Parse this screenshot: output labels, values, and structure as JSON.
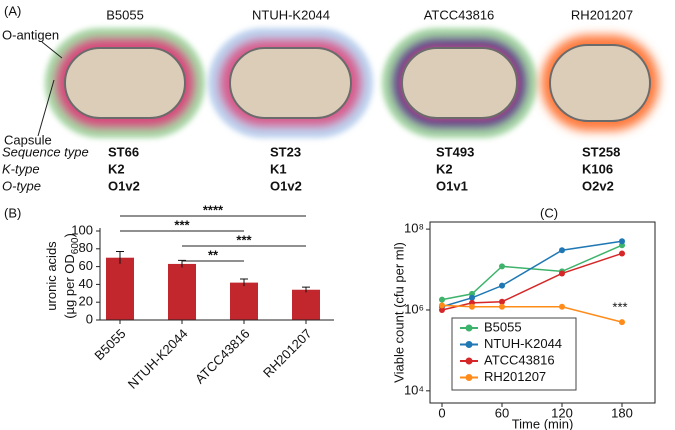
{
  "panel_a": {
    "label": "(A)",
    "strains": [
      "B5055",
      "NTUH-K2044",
      "ATCC43816",
      "RH201207"
    ],
    "parts": {
      "o_antigen": "O-antigen",
      "capsule": "Capsule"
    },
    "rows": [
      {
        "name": "Sequence type",
        "values": [
          "ST66",
          "ST23",
          "ST493",
          "ST258"
        ]
      },
      {
        "name": "K-type",
        "values": [
          "K2",
          "K1",
          "K2",
          "K106"
        ]
      },
      {
        "name": "O-type",
        "values": [
          "O1v2",
          "O1v2",
          "O1v1",
          "O2v2"
        ]
      }
    ]
  },
  "chart_data": [
    {
      "type": "bar",
      "label": "(B)",
      "y_label": "uronic acids",
      "y_label_unit": "(µg per OD",
      "y_label_sub": "600",
      "y_label_end": ")",
      "categories": [
        "B5055",
        "NTUH-K2044",
        "ATCC43816",
        "RH201207"
      ],
      "values": [
        70,
        63,
        42,
        34
      ],
      "errors": [
        7,
        4,
        4,
        3
      ],
      "color": "#c1272d",
      "ylim": [
        0,
        100
      ],
      "yticks": [
        0,
        20,
        40,
        60,
        80,
        100
      ],
      "annotations": [
        {
          "label": "****",
          "from": "B5055",
          "to": "RH201207"
        },
        {
          "label": "***",
          "from": "B5055",
          "to": "ATCC43816"
        },
        {
          "label": "***",
          "from": "NTUH-K2044",
          "to": "RH201207"
        },
        {
          "label": "**",
          "from": "NTUH-K2044",
          "to": "ATCC43816"
        }
      ]
    },
    {
      "type": "line",
      "label": "(C)",
      "x_label": "Time (min)",
      "y_label": "Viable count (cfu per ml)",
      "log_y": true,
      "x": [
        0,
        30,
        60,
        120,
        180
      ],
      "series": [
        {
          "name": "B5055",
          "color": "#3db36b",
          "values": [
            1800000,
            2500000,
            12000000,
            9000000,
            40000000
          ]
        },
        {
          "name": "NTUH-K2044",
          "color": "#1f77b4",
          "values": [
            1200000,
            2000000,
            4000000,
            30000000,
            50000000
          ]
        },
        {
          "name": "ATCC43816",
          "color": "#d62728",
          "values": [
            1000000,
            1500000,
            1600000,
            8000000,
            25000000
          ]
        },
        {
          "name": "RH201207",
          "color": "#ff8c1a",
          "values": [
            1300000,
            1200000,
            1200000,
            1200000,
            500000
          ]
        }
      ],
      "xlim": [
        -12,
        213
      ],
      "xticks": [
        0,
        60,
        120,
        180
      ],
      "ylim": [
        5000,
        150000000
      ],
      "yticks": [
        {
          "value": 10000,
          "label": "10⁴"
        },
        {
          "value": 1000000,
          "label": "10⁶"
        },
        {
          "value": 100000000,
          "label": "10⁸"
        }
      ],
      "annotation": {
        "label": "***",
        "series": "RH201207"
      }
    }
  ]
}
